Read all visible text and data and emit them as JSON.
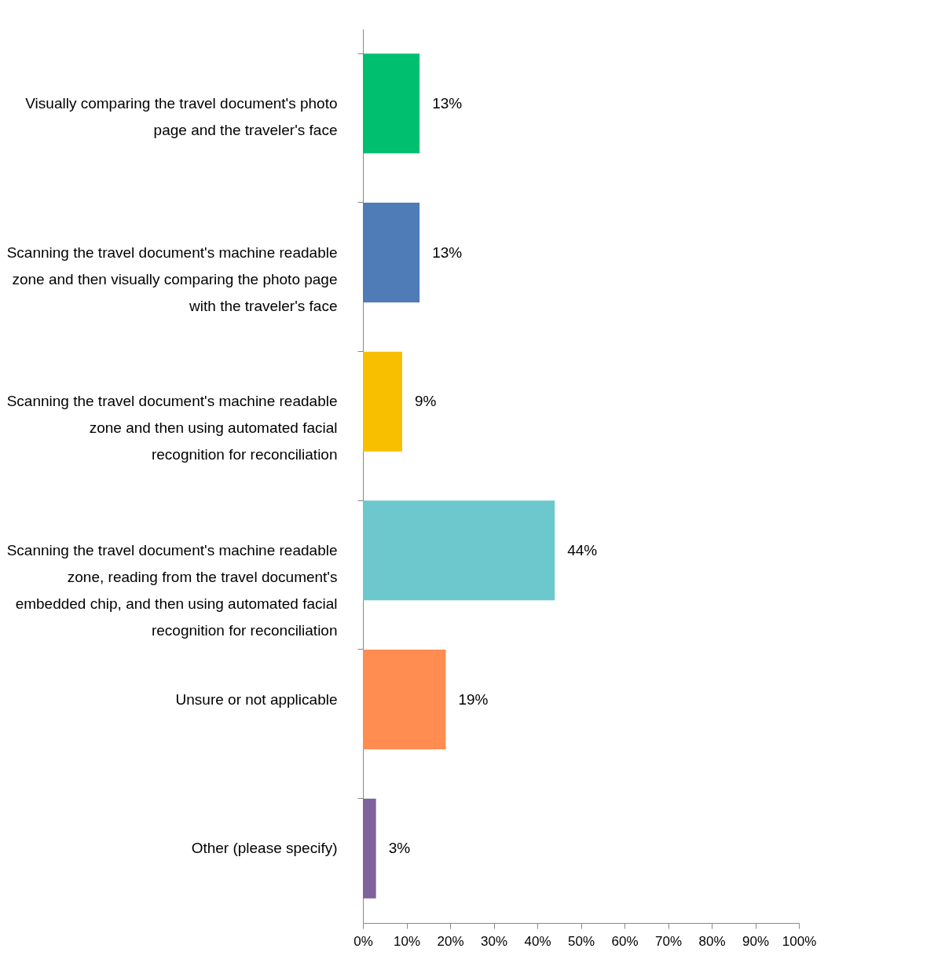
{
  "chart_data": {
    "type": "bar",
    "orientation": "horizontal",
    "categories": [
      "Visually comparing the travel document's photo page and the traveler's face",
      "Scanning the travel document's machine readable zone and then visually comparing the photo page with the traveler's face",
      "Scanning the travel document's machine readable zone and then using automated facial recognition for reconciliation",
      "Scanning the travel document's machine readable zone, reading from the travel document's embedded chip, and then using automated facial recognition for reconciliation",
      "Unsure or not applicable",
      "Other (please specify)"
    ],
    "values": [
      13,
      13,
      9,
      44,
      19,
      3
    ],
    "colors": [
      "#00c06f",
      "#4f7cb7",
      "#f8bf00",
      "#6cc8cc",
      "#ff8c50",
      "#7f619b"
    ],
    "value_labels": [
      "13%",
      "13%",
      "9%",
      "44%",
      "19%",
      "3%"
    ],
    "xlim": [
      0,
      100
    ],
    "xticks": [
      {
        "value": 0,
        "label": "0%"
      },
      {
        "value": 10,
        "label": "10%"
      },
      {
        "value": 20,
        "label": "20%"
      },
      {
        "value": 30,
        "label": "30%"
      },
      {
        "value": 40,
        "label": "40%"
      },
      {
        "value": 50,
        "label": "50%"
      },
      {
        "value": 60,
        "label": "60%"
      },
      {
        "value": 70,
        "label": "70%"
      },
      {
        "value": 80,
        "label": "80%"
      },
      {
        "value": 90,
        "label": "90%"
      },
      {
        "value": 100,
        "label": "100%"
      }
    ],
    "grid": false,
    "legend": false
  }
}
